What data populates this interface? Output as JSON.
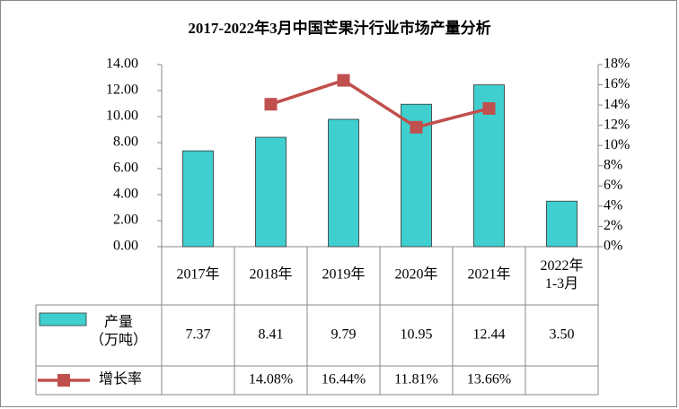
{
  "chart_data": {
    "type": "bar-line-table",
    "title": "2017-2022年3月中国芒果汁行业市场产量分析",
    "categories": [
      "2017年",
      "2018年",
      "2019年",
      "2020年",
      "2021年",
      "2022年\n1-3月"
    ],
    "series": [
      {
        "name": "产量\n（万吨）",
        "type": "bar",
        "color": "#3fcfcf",
        "values": [
          7.37,
          8.41,
          9.79,
          10.95,
          12.44,
          3.5
        ],
        "value_labels": [
          "7.37",
          "8.41",
          "9.79",
          "10.95",
          "12.44",
          "3.50"
        ]
      },
      {
        "name": "增长率",
        "type": "line",
        "axis": "y2",
        "color": "#c0504d",
        "values": [
          null,
          14.08,
          16.44,
          11.81,
          13.66,
          null
        ],
        "value_labels": [
          null,
          "14.08%",
          "16.44%",
          "11.81%",
          "13.66%",
          null
        ]
      }
    ],
    "ylim": [
      0,
      14
    ],
    "yticks": [
      {
        "value": 0,
        "label": "0.00"
      },
      {
        "value": 2,
        "label": "2.00"
      },
      {
        "value": 4,
        "label": "4.00"
      },
      {
        "value": 6,
        "label": "6.00"
      },
      {
        "value": 8,
        "label": "8.00"
      },
      {
        "value": 10,
        "label": "10.00"
      },
      {
        "value": 12,
        "label": "12.00"
      },
      {
        "value": 14,
        "label": "14.00"
      }
    ],
    "y2lim": [
      0,
      18
    ],
    "y2ticks": [
      {
        "value": 0,
        "label": "0%"
      },
      {
        "value": 2,
        "label": "2%"
      },
      {
        "value": 4,
        "label": "4%"
      },
      {
        "value": 6,
        "label": "6%"
      },
      {
        "value": 8,
        "label": "8%"
      },
      {
        "value": 10,
        "label": "10%"
      },
      {
        "value": 12,
        "label": "12%"
      },
      {
        "value": 14,
        "label": "14%"
      },
      {
        "value": 16,
        "label": "16%"
      },
      {
        "value": 18,
        "label": "18%"
      }
    ],
    "grid": false
  }
}
